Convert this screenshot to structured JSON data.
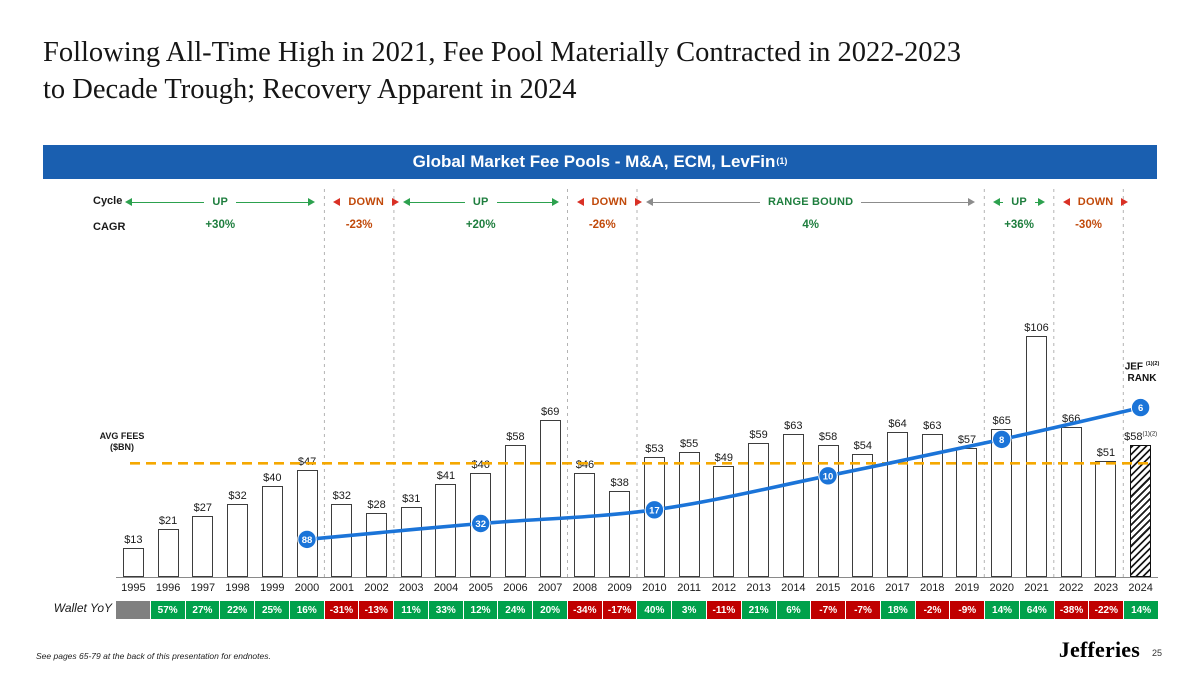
{
  "slide": {
    "title_lines": [
      "Following All-Time High in 2021, Fee Pool Materially Contracted in 2022-2023",
      "to Decade Trough; Recovery Apparent in 2024"
    ],
    "footnote": "See pages 65-79 at the back of this presentation for endnotes.",
    "brand": "Jefferies",
    "page_number": "25"
  },
  "banner": {
    "title": "Global Market Fee Pools - M&A, ECM, LevFin",
    "sup": "(1)"
  },
  "side_labels": {
    "cycle": "Cycle",
    "cagr": "CAGR",
    "avg_fees_line1": "AVG FEES",
    "avg_fees_line2": "($BN)",
    "wallet": "Wallet YoY",
    "jef_rank_line1": "JEF",
    "jef_rank_line2": "RANK",
    "jef_rank_sup": "(1)(2)"
  },
  "colors": {
    "banner_bg": "#1A5FB0",
    "up_arrow": "#2CA14E",
    "up_text": "#1E7E3E",
    "down_arrow": "#D93025",
    "down_text": "#C14A0B",
    "range_arrow": "#8C8C8C",
    "range_text": "#1E7E3E",
    "avg_line": "#F5A800",
    "rank_line": "#1B74D8",
    "wallet_pos": "#00A14B",
    "wallet_neg": "#C00000",
    "wallet_blank": "#808080"
  },
  "chart_data": {
    "type": "bar",
    "title": "Global Market Fee Pools - M&A, ECM, LevFin(1)",
    "unit": "$BN",
    "ylim": [
      0,
      173
    ],
    "value_prefix": "$",
    "last_bar_hatched": true,
    "last_bar_sup": "(1)(2)",
    "avg_line_value": 50.5,
    "years": [
      1995,
      1996,
      1997,
      1998,
      1999,
      2000,
      2001,
      2002,
      2003,
      2004,
      2005,
      2006,
      2007,
      2008,
      2009,
      2010,
      2011,
      2012,
      2013,
      2014,
      2015,
      2016,
      2017,
      2018,
      2019,
      2020,
      2021,
      2022,
      2023,
      2024
    ],
    "values": [
      13,
      21,
      27,
      32,
      40,
      47,
      32,
      28,
      31,
      41,
      46,
      58,
      69,
      46,
      38,
      53,
      55,
      49,
      59,
      63,
      58,
      54,
      64,
      63,
      57,
      65,
      106,
      66,
      51,
      58
    ],
    "wallet_yoy": [
      "",
      "57%",
      "27%",
      "22%",
      "25%",
      "16%",
      "-31%",
      "-13%",
      "11%",
      "33%",
      "12%",
      "24%",
      "20%",
      "-34%",
      "-17%",
      "40%",
      "3%",
      "-11%",
      "21%",
      "6%",
      "-7%",
      "-7%",
      "18%",
      "-2%",
      "-9%",
      "14%",
      "64%",
      "-38%",
      "-22%",
      "14%"
    ],
    "cycles": [
      {
        "label": "UP",
        "cagr": "+30%",
        "start": 1995,
        "end": 2000,
        "kind": "up"
      },
      {
        "label": "DOWN",
        "cagr": "-23%",
        "start": 2001,
        "end": 2002,
        "kind": "down"
      },
      {
        "label": "UP",
        "cagr": "+20%",
        "start": 2003,
        "end": 2007,
        "kind": "up"
      },
      {
        "label": "DOWN",
        "cagr": "-26%",
        "start": 2008,
        "end": 2009,
        "kind": "down"
      },
      {
        "label": "RANGE BOUND",
        "cagr": "4%",
        "start": 2010,
        "end": 2019,
        "kind": "range"
      },
      {
        "label": "UP",
        "cagr": "+36%",
        "start": 2020,
        "end": 2021,
        "kind": "up"
      },
      {
        "label": "DOWN",
        "cagr": "-30%",
        "start": 2022,
        "end": 2023,
        "kind": "down"
      }
    ],
    "separators_after": [
      2000,
      2002,
      2007,
      2009,
      2019,
      2021,
      2023
    ],
    "jef_rank_points": [
      {
        "year": 2000,
        "rank": "88",
        "level": 17
      },
      {
        "year": 2005,
        "rank": "32",
        "level": 24
      },
      {
        "year": 2010,
        "rank": "17",
        "level": 30
      },
      {
        "year": 2015,
        "rank": "10",
        "level": 45
      },
      {
        "year": 2020,
        "rank": "8",
        "level": 61
      },
      {
        "year": 2024,
        "rank": "6",
        "level": 75
      }
    ]
  }
}
